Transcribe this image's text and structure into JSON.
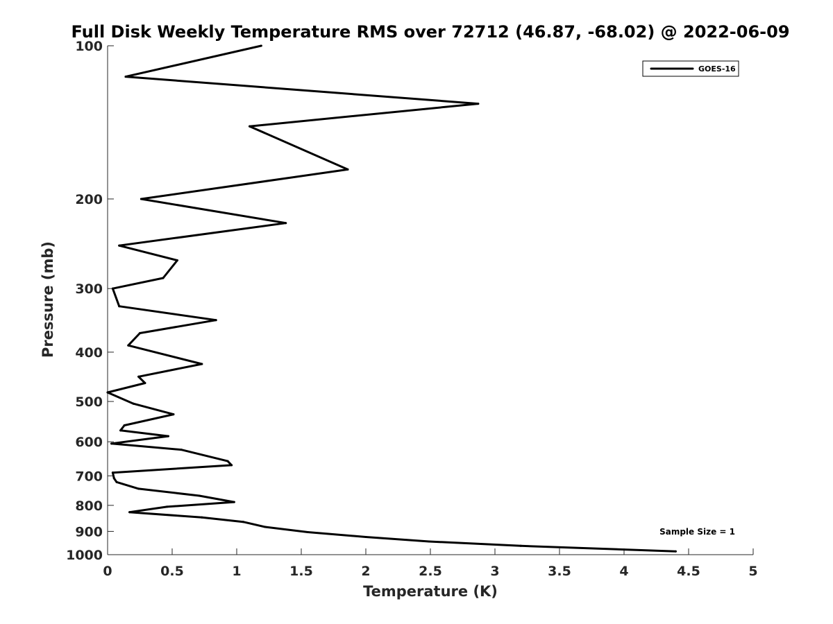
{
  "chart_data": {
    "type": "line",
    "title": "Full Disk Weekly Temperature RMS over 72712 (46.87, -68.02) @ 2022-06-09",
    "xlabel": "Temperature (K)",
    "ylabel": "Pressure (mb)",
    "xlim": [
      0,
      5
    ],
    "ylim": [
      100,
      1000
    ],
    "yscale": "log",
    "y_reversed": true,
    "grid": false,
    "x_ticks": [
      "0",
      "0.5",
      "1",
      "1.5",
      "2",
      "2.5",
      "3",
      "3.5",
      "4",
      "4.5",
      "5"
    ],
    "y_ticks": [
      "100",
      "200",
      "300",
      "400",
      "500",
      "600",
      "700",
      "800",
      "900",
      "1000"
    ],
    "legend": {
      "position": "top-right",
      "entries": [
        "GOES-16"
      ]
    },
    "annotation": "Sample Size = 1",
    "series": [
      {
        "name": "GOES-16",
        "color": "#000000",
        "points": [
          [
            1.19,
            100
          ],
          [
            0.14,
            115
          ],
          [
            2.87,
            130
          ],
          [
            1.1,
            144
          ],
          [
            1.86,
            175
          ],
          [
            0.26,
            200
          ],
          [
            1.38,
            223
          ],
          [
            0.09,
            247
          ],
          [
            0.54,
            264
          ],
          [
            0.43,
            286
          ],
          [
            0.04,
            300
          ],
          [
            0.09,
            325
          ],
          [
            0.84,
            346
          ],
          [
            0.25,
            367
          ],
          [
            0.16,
            388
          ],
          [
            0.73,
            422
          ],
          [
            0.24,
            447
          ],
          [
            0.29,
            460
          ],
          [
            0.0,
            480
          ],
          [
            0.2,
            505
          ],
          [
            0.51,
            530
          ],
          [
            0.13,
            557
          ],
          [
            0.1,
            570
          ],
          [
            0.47,
            585
          ],
          [
            0.03,
            605
          ],
          [
            0.57,
            622
          ],
          [
            0.93,
            655
          ],
          [
            0.96,
            667
          ],
          [
            0.04,
            690
          ],
          [
            0.05,
            708
          ],
          [
            0.07,
            720
          ],
          [
            0.24,
            742
          ],
          [
            0.71,
            766
          ],
          [
            0.98,
            788
          ],
          [
            0.46,
            805
          ],
          [
            0.17,
            825
          ],
          [
            0.73,
            845
          ],
          [
            1.05,
            862
          ],
          [
            1.22,
            882
          ],
          [
            1.55,
            903
          ],
          [
            2.0,
            923
          ],
          [
            2.49,
            942
          ],
          [
            3.2,
            961
          ],
          [
            4.4,
            985
          ]
        ]
      }
    ]
  }
}
